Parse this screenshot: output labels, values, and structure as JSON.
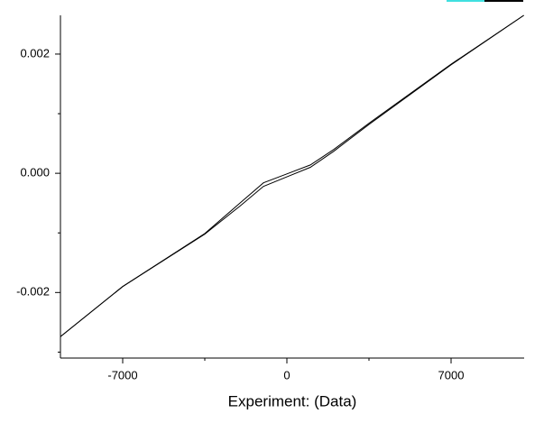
{
  "chart_data": {
    "type": "line",
    "x_label": "Experiment: (Data)",
    "x": [
      -9654,
      -7000,
      -3500,
      -2000,
      -1000,
      0,
      1000,
      2000,
      3500,
      7000,
      10100
    ],
    "series": [
      {
        "color": "#000000",
        "values": [
          -0.00274,
          -0.0019,
          -0.00102,
          -0.00055,
          -0.00022,
          -6e-05,
          0.0001,
          0.00037,
          0.00082,
          0.00182,
          0.00265
        ]
      },
      {
        "color": "#000000",
        "values": [
          -0.00274,
          -0.0019,
          -0.00101,
          -0.0005,
          -0.00016,
          -1e-05,
          0.00014,
          0.0004,
          0.00084,
          0.00183,
          0.00265
        ]
      }
    ],
    "xlim": [
      -9654,
      10115
    ],
    "ylim": [
      -0.0031,
      0.00265
    ],
    "xticks": [
      -7000,
      0,
      7000
    ],
    "yticks": [
      -0.002,
      {
        "value": 0,
        "label": "0.000"
      },
      0.002
    ],
    "xminor_ticks": [
      -3500,
      3500
    ],
    "yminor_ticks": [
      -0.003,
      -0.001,
      0.001
    ],
    "grid": false
  }
}
